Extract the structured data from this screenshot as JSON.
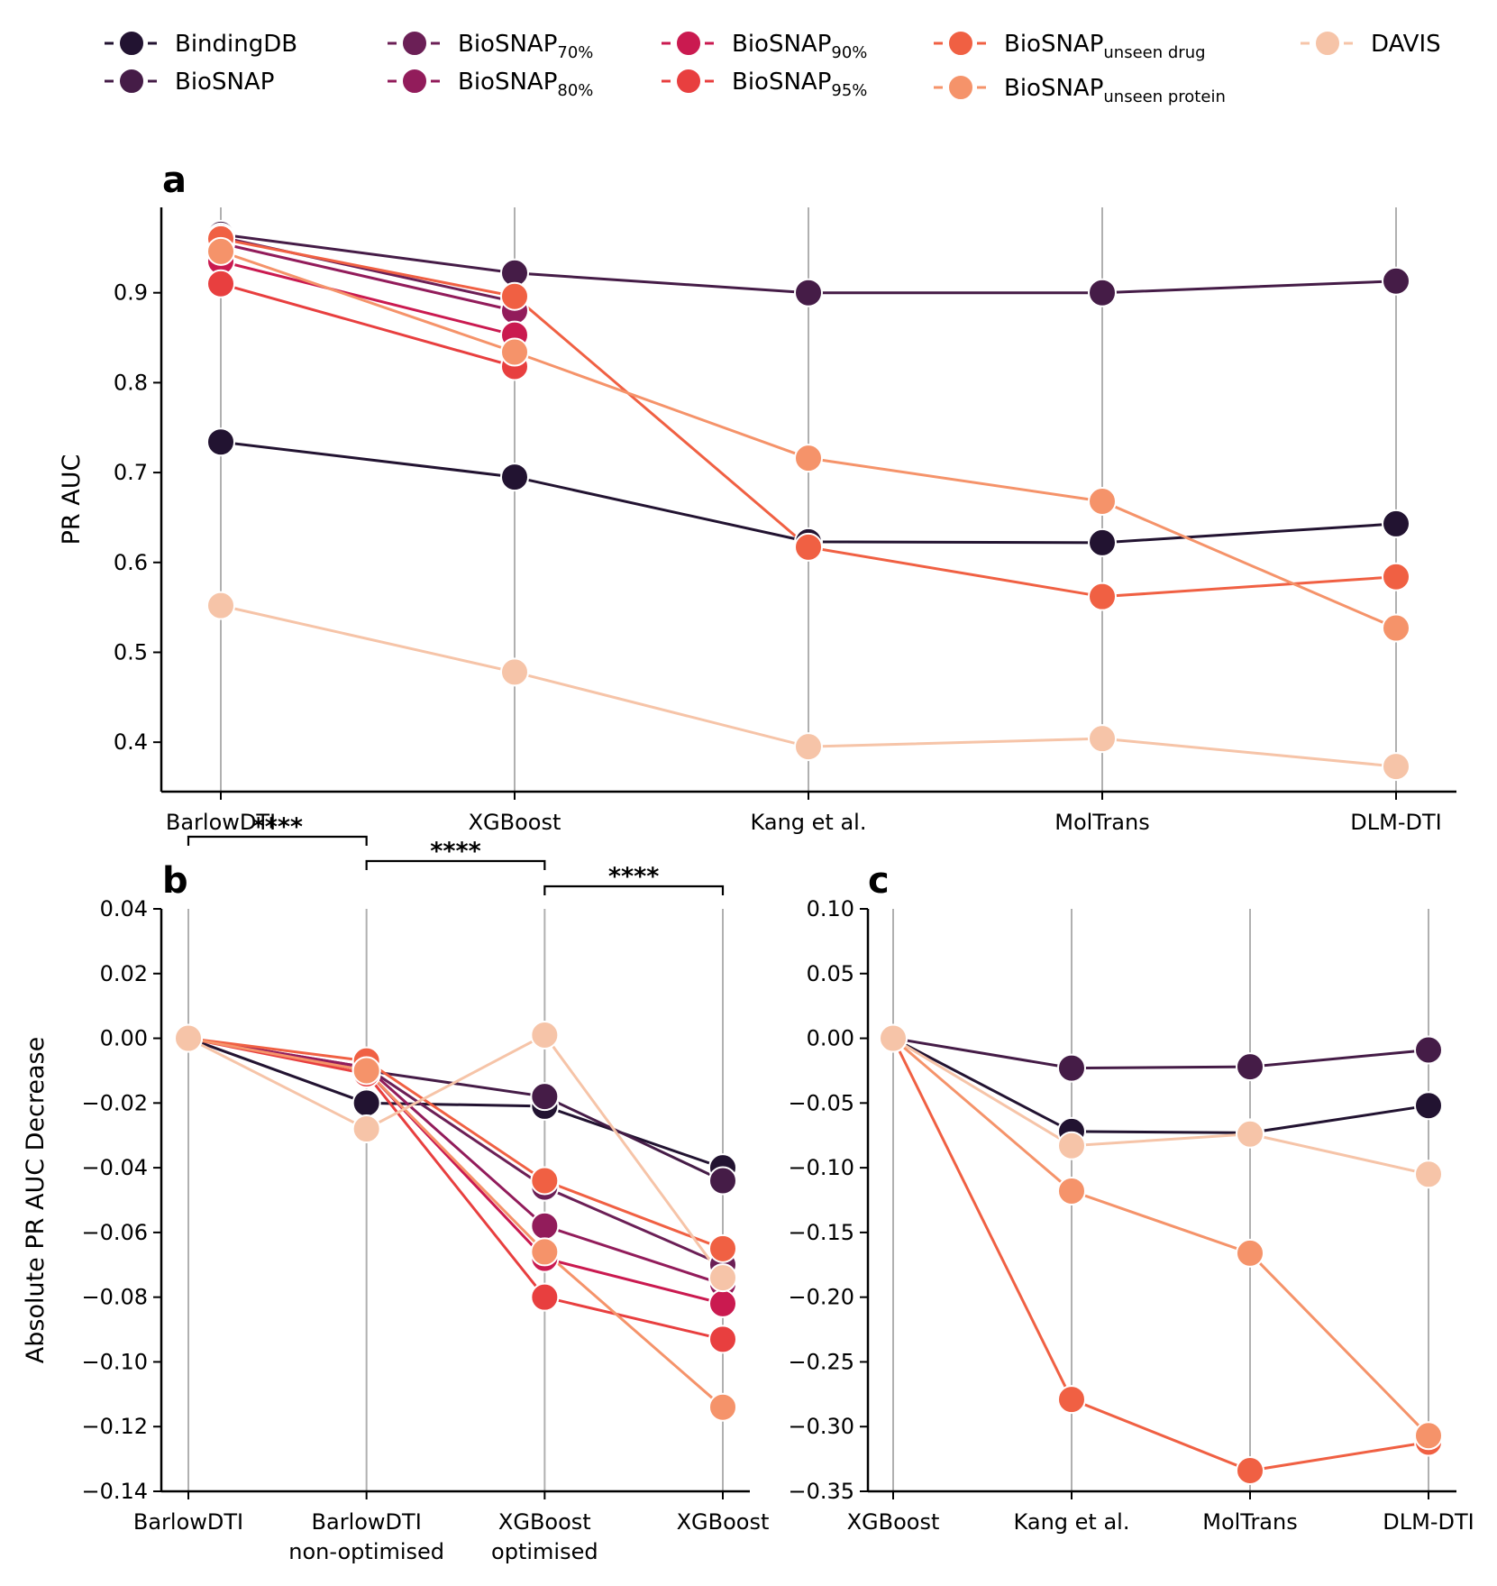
{
  "legend": [
    {
      "key": "BindingDB",
      "label": "BindingDB",
      "sub": "",
      "color": "#221331"
    },
    {
      "key": "BioSNAP",
      "label": "BioSNAP",
      "sub": "",
      "color": "#451c47"
    },
    {
      "key": "BioSNAP70",
      "label": "BioSNAP",
      "sub": "70%",
      "color": "#6b1f56"
    },
    {
      "key": "BioSNAP80",
      "label": "BioSNAP",
      "sub": "80%",
      "color": "#921c5b"
    },
    {
      "key": "BioSNAP90",
      "label": "BioSNAP",
      "sub": "90%",
      "color": "#ca1a50"
    },
    {
      "key": "BioSNAP95",
      "label": "BioSNAP",
      "sub": "95%",
      "color": "#e83f3f"
    },
    {
      "key": "BioSNAPud",
      "label": "BioSNAP",
      "sub": "unseen drug",
      "color": "#f06043"
    },
    {
      "key": "BioSNAPup",
      "label": "BioSNAP",
      "sub": "unseen protein",
      "color": "#f5936a"
    },
    {
      "key": "DAVIS",
      "label": "DAVIS",
      "sub": "",
      "color": "#f6c4a8"
    }
  ],
  "chart_data": [
    {
      "panel": "a",
      "type": "line",
      "xlabel": "",
      "ylabel": "PR AUC",
      "categories": [
        "BarlowDTI",
        "XGBoost",
        "Kang et al.",
        "MolTrans",
        "DLM-DTI"
      ],
      "ylim": [
        0.345,
        0.995
      ],
      "yticks": [
        "0.4",
        "0.5",
        "0.6",
        "0.7",
        "0.8",
        "0.9"
      ],
      "series": [
        {
          "key": "BindingDB",
          "values": [
            0.734,
            0.695,
            0.623,
            0.622,
            0.643
          ]
        },
        {
          "key": "BioSNAP",
          "values": [
            0.965,
            0.922,
            0.9,
            0.9,
            0.913
          ]
        },
        {
          "key": "BioSNAP70",
          "values": [
            0.962,
            0.89,
            null,
            null,
            null
          ]
        },
        {
          "key": "BioSNAP80",
          "values": [
            0.955,
            0.88,
            null,
            null,
            null
          ]
        },
        {
          "key": "BioSNAP90",
          "values": [
            0.935,
            0.853,
            null,
            null,
            null
          ]
        },
        {
          "key": "BioSNAP95",
          "values": [
            0.91,
            0.818,
            null,
            null,
            null
          ]
        },
        {
          "key": "BioSNAPud",
          "values": [
            0.96,
            0.896,
            0.617,
            0.562,
            0.584
          ]
        },
        {
          "key": "BioSNAPup",
          "values": [
            0.946,
            0.834,
            0.716,
            0.668,
            0.527
          ]
        },
        {
          "key": "DAVIS",
          "values": [
            0.552,
            0.478,
            0.395,
            0.404,
            0.373
          ]
        }
      ]
    },
    {
      "panel": "b",
      "type": "line",
      "xlabel": "",
      "ylabel": "Absolute PR AUC Decrease",
      "categories": [
        "BarlowDTI",
        "BarlowDTI\nnon-optimised",
        "XGBoost\noptimised",
        "XGBoost"
      ],
      "ylim": [
        -0.14,
        0.04
      ],
      "yticks": [
        "−0.14",
        "−0.12",
        "−0.10",
        "−0.08",
        "−0.06",
        "−0.04",
        "−0.02",
        "0.00",
        "0.02",
        "0.04"
      ],
      "significance": [
        {
          "from": 0,
          "to": 1,
          "label": "****"
        },
        {
          "from": 1,
          "to": 2,
          "label": "****"
        },
        {
          "from": 2,
          "to": 3,
          "label": "****"
        }
      ],
      "series": [
        {
          "key": "BindingDB",
          "values": [
            0.0,
            -0.02,
            -0.021,
            -0.04
          ]
        },
        {
          "key": "BioSNAP",
          "values": [
            0.0,
            -0.01,
            -0.018,
            -0.044
          ]
        },
        {
          "key": "BioSNAP70",
          "values": [
            0.0,
            -0.009,
            -0.046,
            -0.07
          ]
        },
        {
          "key": "BioSNAP80",
          "values": [
            0.0,
            -0.009,
            -0.058,
            -0.076
          ]
        },
        {
          "key": "BioSNAP90",
          "values": [
            0.0,
            -0.01,
            -0.068,
            -0.082
          ]
        },
        {
          "key": "BioSNAP95",
          "values": [
            0.0,
            -0.011,
            -0.08,
            -0.093
          ]
        },
        {
          "key": "BioSNAPud",
          "values": [
            0.0,
            -0.007,
            -0.044,
            -0.065
          ]
        },
        {
          "key": "BioSNAPup",
          "values": [
            0.0,
            -0.01,
            -0.066,
            -0.114
          ]
        },
        {
          "key": "DAVIS",
          "values": [
            0.0,
            -0.028,
            0.001,
            -0.074
          ]
        }
      ]
    },
    {
      "panel": "c",
      "type": "line",
      "xlabel": "",
      "ylabel": "",
      "categories": [
        "XGBoost",
        "Kang et al.",
        "MolTrans",
        "DLM-DTI"
      ],
      "ylim": [
        -0.35,
        0.1
      ],
      "yticks": [
        "−0.35",
        "−0.30",
        "−0.25",
        "−0.20",
        "−0.15",
        "−0.10",
        "−0.05",
        "0.00",
        "0.05",
        "0.10"
      ],
      "series": [
        {
          "key": "BindingDB",
          "values": [
            0.0,
            -0.072,
            -0.073,
            -0.052
          ]
        },
        {
          "key": "BioSNAP",
          "values": [
            0.0,
            -0.023,
            -0.022,
            -0.009
          ]
        },
        {
          "key": "BioSNAPud",
          "values": [
            0.0,
            -0.279,
            -0.334,
            -0.312
          ]
        },
        {
          "key": "BioSNAPup",
          "values": [
            0.0,
            -0.118,
            -0.166,
            -0.307
          ]
        },
        {
          "key": "DAVIS",
          "values": [
            0.0,
            -0.083,
            -0.074,
            -0.105
          ]
        }
      ]
    }
  ]
}
